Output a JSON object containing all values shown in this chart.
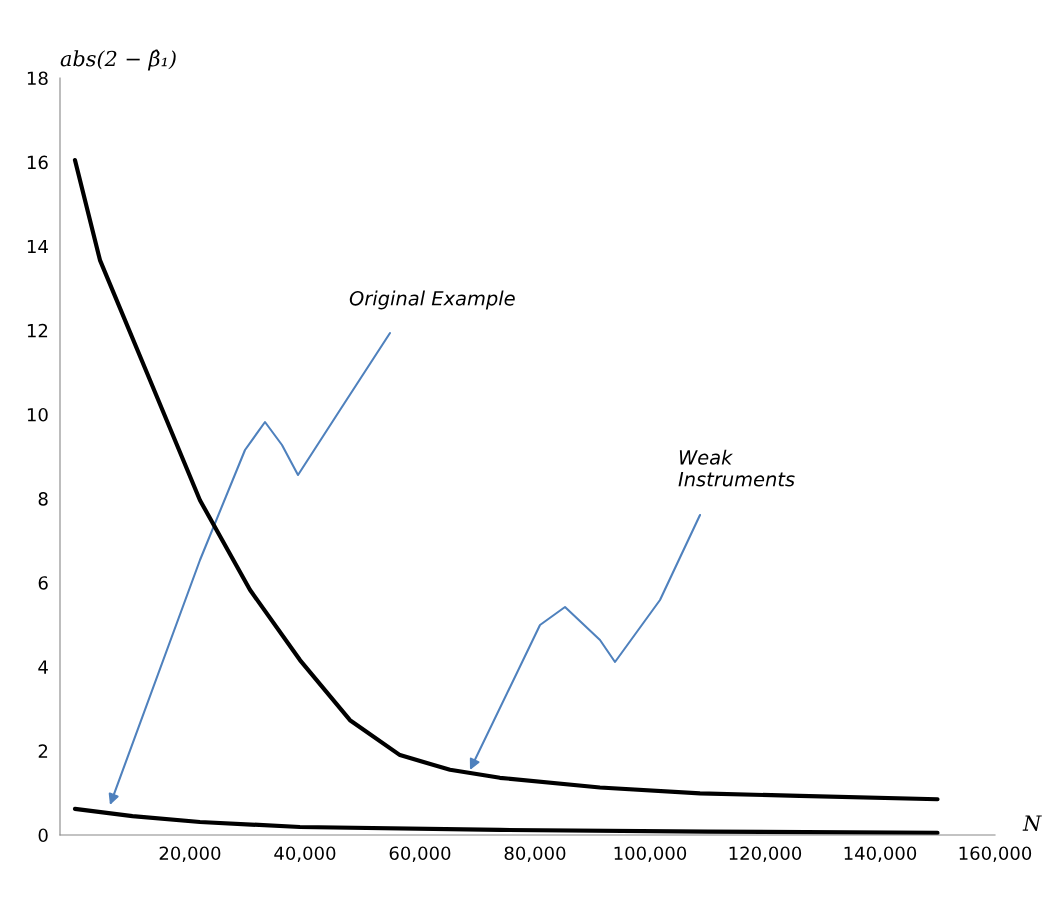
{
  "chart_data": {
    "type": "line",
    "xlabel": "N",
    "ylabel": "abs(2 − β̂₁)",
    "xlim": [
      -2600,
      160000
    ],
    "ylim": [
      0,
      18
    ],
    "xticks": [
      {
        "value": 20000,
        "label": "20,000"
      },
      {
        "value": 40000,
        "label": "40,000"
      },
      {
        "value": 60000,
        "label": "60,000"
      },
      {
        "value": 80000,
        "label": "80,000"
      },
      {
        "value": 100000,
        "label": "100,000"
      },
      {
        "value": 120000,
        "label": "120,000"
      },
      {
        "value": 140000,
        "label": "140,000"
      },
      {
        "value": 160000,
        "label": "160,000"
      }
    ],
    "yticks": [
      0,
      2,
      4,
      6,
      8,
      10,
      12,
      14,
      16,
      18
    ],
    "grid": false,
    "marker": "none",
    "line_style": "solid",
    "series": [
      {
        "color": "#000000",
        "x": [
          0,
          4350,
          13040,
          21740,
          30430,
          39130,
          47830,
          56520,
          65220,
          73900,
          91300,
          108700,
          126000,
          150000
        ],
        "values": [
          16.05,
          13.67,
          10.82,
          7.96,
          5.83,
          4.16,
          2.73,
          1.9,
          1.55,
          1.36,
          1.13,
          0.99,
          0.93,
          0.85
        ]
      },
      {
        "color": "#000000",
        "x": [
          0,
          10000,
          21740,
          39130,
          73900,
          110000,
          150000
        ],
        "values": [
          0.62,
          0.45,
          0.31,
          0.19,
          0.12,
          0.08,
          0.05
        ]
      }
    ],
    "annotations": [
      "Original Example",
      "Weak\nInstruments"
    ]
  }
}
